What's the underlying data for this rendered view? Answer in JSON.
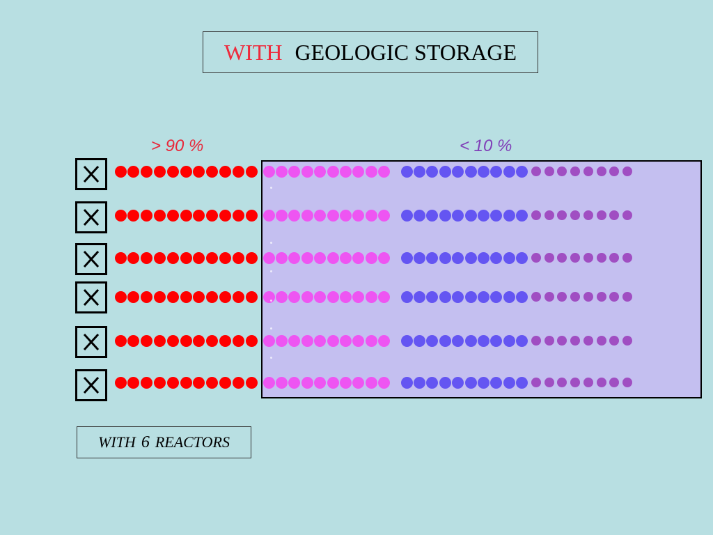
{
  "title": {
    "highlight": "WITH",
    "rest": "GEOLOGIC STORAGE",
    "highlight_color": "#ee2a3c"
  },
  "labels": {
    "high_pct": "> 90 %",
    "high_pct_color": "#e8283a",
    "low_pct": "< 10 %",
    "low_pct_color": "#8040b8"
  },
  "reactor_icon": "x-in-box-icon",
  "reactor_count": 6,
  "dot_groups": [
    {
      "color": "#ff0000",
      "count": 11
    },
    {
      "color": "#ee55f2",
      "count": 10
    },
    {
      "color": "#6455f2",
      "count": 10
    },
    {
      "color": "#a04ec2",
      "count": 8
    }
  ],
  "storage_box_color": "#c4bff0",
  "caption": {
    "prefix": "WITH",
    "number": "6",
    "suffix": "REACTORS"
  }
}
